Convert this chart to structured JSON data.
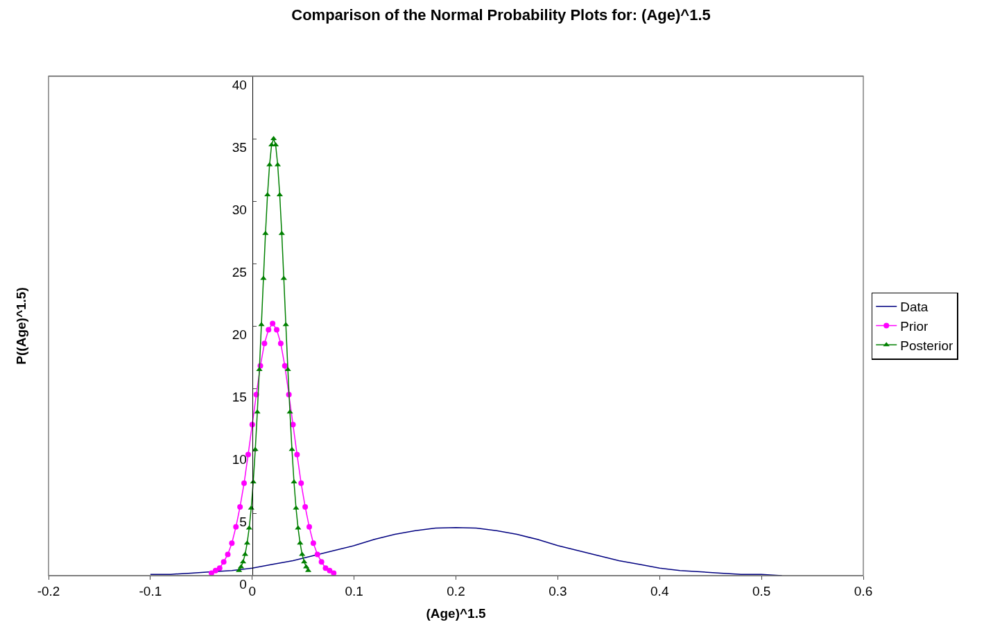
{
  "chart_data": {
    "type": "line",
    "title": "Comparison of the Normal Probability Plots for: (Age)^1.5",
    "xlabel": "(Age)^1.5",
    "ylabel": "P((Age)^1.5)",
    "xlim": [
      -0.2,
      0.6
    ],
    "xticks": [
      -0.2,
      -0.1,
      0,
      0.1,
      0.2,
      0.3,
      0.4,
      0.5,
      0.6
    ],
    "ylim": [
      0,
      40
    ],
    "yticks": [
      0,
      5,
      10,
      15,
      20,
      25,
      30,
      35,
      40
    ],
    "legend": "right",
    "series": [
      {
        "name": "Data",
        "color": "#000080",
        "marker": "none",
        "x": [
          -0.1,
          -0.08,
          -0.06,
          -0.04,
          -0.02,
          0,
          0.02,
          0.04,
          0.06,
          0.08,
          0.1,
          0.12,
          0.14,
          0.16,
          0.18,
          0.2,
          0.22,
          0.24,
          0.26,
          0.28,
          0.3,
          0.32,
          0.34,
          0.36,
          0.38,
          0.4,
          0.42,
          0.44,
          0.46,
          0.48,
          0.5,
          0.52
        ],
        "values": [
          0.1,
          0.1,
          0.2,
          0.3,
          0.4,
          0.6,
          0.9,
          1.2,
          1.6,
          2.0,
          2.4,
          2.9,
          3.3,
          3.6,
          3.8,
          3.85,
          3.8,
          3.6,
          3.3,
          2.9,
          2.4,
          2.0,
          1.6,
          1.2,
          0.9,
          0.6,
          0.4,
          0.3,
          0.2,
          0.1,
          0.1,
          0.0
        ]
      },
      {
        "name": "Prior",
        "color": "#ff00ff",
        "marker": "circle",
        "x": [
          -0.04,
          -0.036,
          -0.032,
          -0.028,
          -0.024,
          -0.02,
          -0.016,
          -0.012,
          -0.008,
          -0.004,
          0,
          0.004,
          0.008,
          0.012,
          0.016,
          0.02,
          0.024,
          0.028,
          0.032,
          0.036,
          0.04,
          0.044,
          0.048,
          0.052,
          0.056,
          0.06,
          0.064,
          0.068,
          0.072,
          0.076,
          0.08
        ],
        "values": [
          0.2,
          0.4,
          0.6,
          1.1,
          1.7,
          2.6,
          3.9,
          5.5,
          7.4,
          9.7,
          12.1,
          14.5,
          16.8,
          18.6,
          19.7,
          20.2,
          19.7,
          18.6,
          16.8,
          14.5,
          12.1,
          9.7,
          7.4,
          5.5,
          3.9,
          2.6,
          1.7,
          1.1,
          0.6,
          0.4,
          0.2
        ]
      },
      {
        "name": "Posterior",
        "color": "#008000",
        "marker": "triangle",
        "x": [
          -0.013,
          -0.011,
          -0.009,
          -0.007,
          -0.005,
          -0.003,
          -0.001,
          0.001,
          0.003,
          0.005,
          0.007,
          0.009,
          0.011,
          0.013,
          0.015,
          0.017,
          0.019,
          0.021,
          0.023,
          0.025,
          0.027,
          0.029,
          0.031,
          0.033,
          0.035,
          0.037,
          0.039,
          0.041,
          0.043,
          0.045,
          0.047,
          0.049,
          0.051,
          0.053,
          0.055
        ],
        "values": [
          0.4,
          0.7,
          1.1,
          1.7,
          2.6,
          3.8,
          5.4,
          7.5,
          10.1,
          13.1,
          16.5,
          20.1,
          23.8,
          27.4,
          30.5,
          32.9,
          34.5,
          35.0,
          34.5,
          32.9,
          30.5,
          27.4,
          23.8,
          20.1,
          16.5,
          13.1,
          10.1,
          7.5,
          5.4,
          3.8,
          2.6,
          1.7,
          1.1,
          0.7,
          0.4
        ]
      }
    ]
  }
}
